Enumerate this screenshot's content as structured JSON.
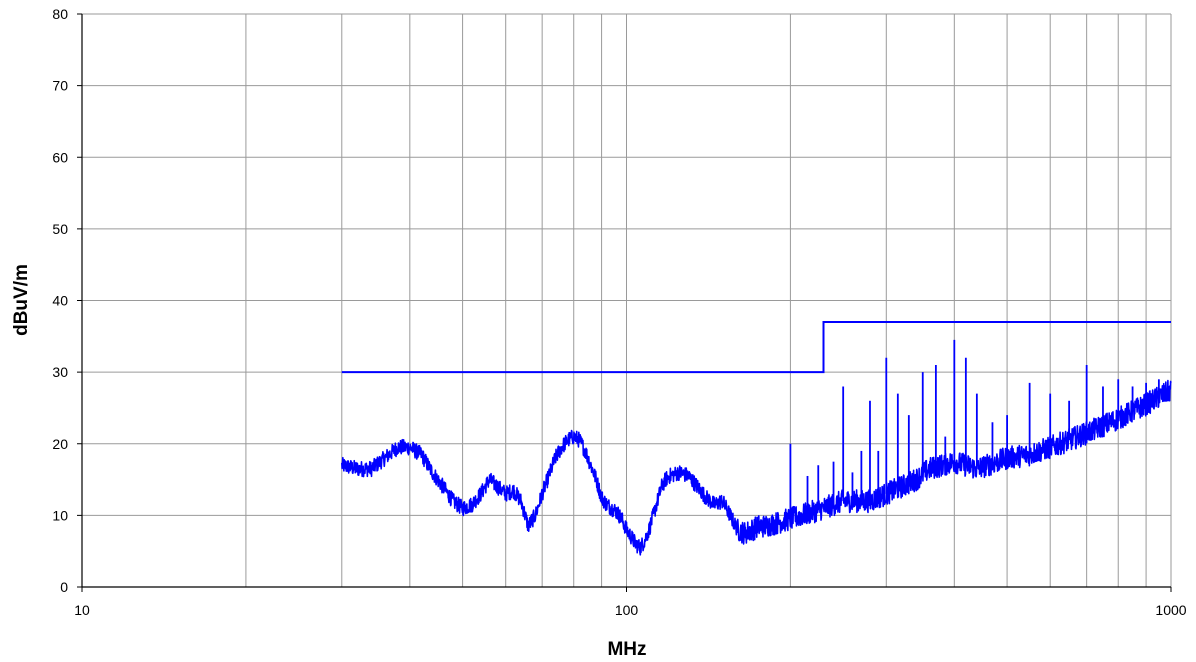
{
  "chart_data": {
    "type": "line",
    "title": "",
    "xlabel": "MHz",
    "ylabel": "dBuV/m",
    "x_scale": "log",
    "xlim": [
      10,
      1000
    ],
    "ylim": [
      0,
      80
    ],
    "x_tick_labels": [
      "10",
      "100",
      "1000"
    ],
    "y_tick_labels": [
      "0",
      "10",
      "20",
      "30",
      "40",
      "50",
      "60",
      "70",
      "80"
    ],
    "x_gridlines": [
      20,
      30,
      40,
      50,
      60,
      70,
      80,
      90,
      100,
      200,
      300,
      400,
      500,
      600,
      700,
      800,
      900,
      1000
    ],
    "y_gridlines": [
      10,
      20,
      30,
      40,
      50,
      60,
      70,
      80
    ],
    "grid": true,
    "legend": "none",
    "colors": {
      "series": "#0000FF",
      "grid": "#9a9a9a",
      "axis": "#000000"
    },
    "series": [
      {
        "role": "limit",
        "x": [
          30,
          230,
          230,
          1000
        ],
        "y": [
          30,
          30,
          37,
          37
        ]
      },
      {
        "role": "measurement",
        "x": [
          30,
          32,
          34,
          36,
          38,
          40,
          42,
          44,
          46,
          48,
          50,
          52,
          54,
          56,
          58,
          60,
          62,
          64,
          66,
          68,
          70,
          72,
          74,
          76,
          78,
          80,
          82,
          84,
          86,
          88,
          90,
          92,
          94,
          96,
          98,
          100,
          102,
          104,
          106,
          108,
          110,
          112,
          114,
          116,
          118,
          120,
          125,
          130,
          135,
          140,
          145,
          150,
          155,
          160,
          165,
          170,
          175,
          180,
          190,
          200,
          210,
          220,
          230,
          240,
          250,
          260,
          270,
          280,
          290,
          300,
          320,
          340,
          360,
          380,
          400,
          420,
          440,
          460,
          480,
          500,
          550,
          600,
          650,
          700,
          750,
          800,
          850,
          900,
          950,
          1000
        ],
        "y": [
          17,
          16.5,
          16.5,
          18,
          19.5,
          19.5,
          18.5,
          16,
          14,
          12,
          11,
          11.5,
          13,
          15,
          14,
          13,
          13.5,
          12,
          8.5,
          10,
          13,
          15.5,
          18,
          19.5,
          20.5,
          21,
          20.5,
          19,
          17,
          15,
          12.5,
          11.5,
          11,
          10.5,
          9.5,
          8,
          7,
          6,
          5.5,
          6.5,
          8,
          10,
          12,
          14,
          15,
          15.5,
          16,
          15.5,
          14,
          12.5,
          11.5,
          12,
          10,
          8,
          7.5,
          8,
          8.5,
          8.5,
          9,
          9.5,
          10,
          10.5,
          11,
          11.5,
          12,
          12,
          12,
          12,
          12.5,
          13,
          14,
          15,
          16.5,
          17,
          17.5,
          17,
          16.5,
          17,
          17.5,
          18,
          18.5,
          19.5,
          20.5,
          21.5,
          22.5,
          23.5,
          24.5,
          25.5,
          26.5,
          27.5
        ]
      },
      {
        "role": "peaks",
        "x": [
          200,
          215,
          225,
          240,
          250,
          260,
          270,
          280,
          290,
          300,
          315,
          330,
          350,
          370,
          385,
          400,
          420,
          440,
          470,
          500,
          550,
          600,
          650,
          700,
          750,
          800,
          850,
          900,
          950
        ],
        "y": [
          20,
          15.5,
          17,
          17.5,
          28,
          16,
          19,
          26,
          19,
          32,
          27,
          24,
          30,
          31,
          21,
          34.5,
          32,
          27,
          23,
          24,
          28.5,
          27,
          26,
          31,
          28,
          29,
          28,
          28.5,
          29
        ]
      }
    ]
  }
}
